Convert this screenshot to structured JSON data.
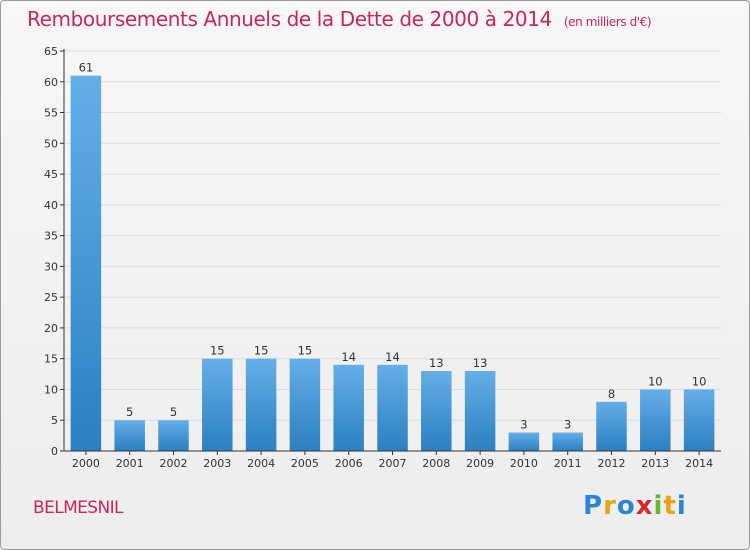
{
  "header": {
    "title": "Remboursements Annuels de la Dette de 2000 à 2014",
    "unit": "(en milliers d'€)"
  },
  "footer": {
    "commune": "BELMESNIL",
    "logo": {
      "letters": [
        "P",
        "r",
        "o",
        "x",
        "i",
        "t",
        "i"
      ],
      "colors": [
        "#2a86d2",
        "#e8a21a",
        "#2a86d2",
        "#d9262f",
        "#6ab534",
        "#e8a21a",
        "#2a86d2"
      ]
    }
  },
  "chart_data": {
    "type": "bar",
    "title": "Remboursements Annuels de la Dette de 2000 à 2014",
    "xlabel": "",
    "ylabel": "",
    "categories": [
      "2000",
      "2001",
      "2002",
      "2003",
      "2004",
      "2005",
      "2006",
      "2007",
      "2008",
      "2009",
      "2010",
      "2011",
      "2012",
      "2013",
      "2014"
    ],
    "values": [
      61,
      5,
      5,
      15,
      15,
      15,
      14,
      14,
      13,
      13,
      3,
      3,
      8,
      10,
      10
    ],
    "ylim": [
      0,
      65
    ],
    "yticks": [
      0,
      5,
      10,
      15,
      20,
      25,
      30,
      35,
      40,
      45,
      50,
      55,
      60,
      65
    ],
    "grid": true,
    "legend": "none",
    "colors": {
      "bar_top": "#64afe8",
      "bar_bottom": "#2c7fc1",
      "grid": "#dcdcdc",
      "axis": "#333333"
    }
  }
}
